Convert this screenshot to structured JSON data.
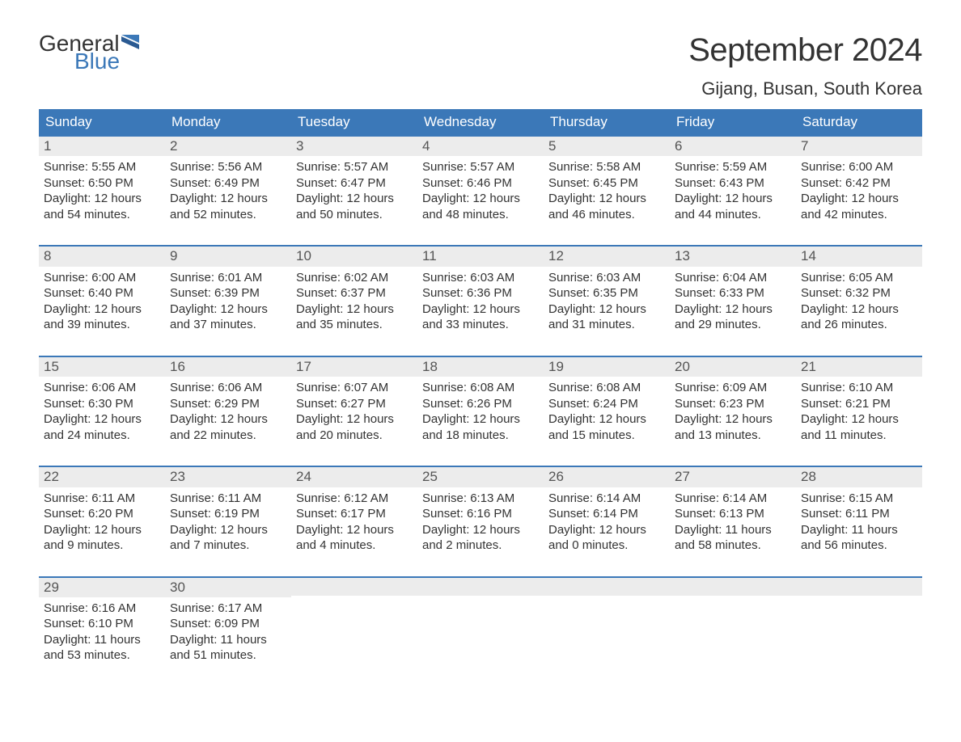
{
  "brand": {
    "general": "General",
    "blue": "Blue"
  },
  "title": "September 2024",
  "location": "Gijang, Busan, South Korea",
  "colors": {
    "header_bg": "#3b78b8",
    "header_text": "#ffffff",
    "daynum_bg": "#ececec",
    "daynum_text": "#555555",
    "body_text": "#333333",
    "logo_blue": "#3b78b8",
    "page_bg": "#ffffff"
  },
  "typography": {
    "title_fontsize": 40,
    "location_fontsize": 22,
    "header_fontsize": 17,
    "daynum_fontsize": 17,
    "body_fontsize": 15
  },
  "dow": [
    "Sunday",
    "Monday",
    "Tuesday",
    "Wednesday",
    "Thursday",
    "Friday",
    "Saturday"
  ],
  "labels": {
    "sunrise": "Sunrise: ",
    "sunset": "Sunset: ",
    "daylight_prefix": "Daylight: ",
    "and": " and ",
    "hours": " hours",
    "minutes": " minutes."
  },
  "days": [
    {
      "n": 1,
      "sunrise": "5:55 AM",
      "sunset": "6:50 PM",
      "dh": 12,
      "dm": 54
    },
    {
      "n": 2,
      "sunrise": "5:56 AM",
      "sunset": "6:49 PM",
      "dh": 12,
      "dm": 52
    },
    {
      "n": 3,
      "sunrise": "5:57 AM",
      "sunset": "6:47 PM",
      "dh": 12,
      "dm": 50
    },
    {
      "n": 4,
      "sunrise": "5:57 AM",
      "sunset": "6:46 PM",
      "dh": 12,
      "dm": 48
    },
    {
      "n": 5,
      "sunrise": "5:58 AM",
      "sunset": "6:45 PM",
      "dh": 12,
      "dm": 46
    },
    {
      "n": 6,
      "sunrise": "5:59 AM",
      "sunset": "6:43 PM",
      "dh": 12,
      "dm": 44
    },
    {
      "n": 7,
      "sunrise": "6:00 AM",
      "sunset": "6:42 PM",
      "dh": 12,
      "dm": 42
    },
    {
      "n": 8,
      "sunrise": "6:00 AM",
      "sunset": "6:40 PM",
      "dh": 12,
      "dm": 39
    },
    {
      "n": 9,
      "sunrise": "6:01 AM",
      "sunset": "6:39 PM",
      "dh": 12,
      "dm": 37
    },
    {
      "n": 10,
      "sunrise": "6:02 AM",
      "sunset": "6:37 PM",
      "dh": 12,
      "dm": 35
    },
    {
      "n": 11,
      "sunrise": "6:03 AM",
      "sunset": "6:36 PM",
      "dh": 12,
      "dm": 33
    },
    {
      "n": 12,
      "sunrise": "6:03 AM",
      "sunset": "6:35 PM",
      "dh": 12,
      "dm": 31
    },
    {
      "n": 13,
      "sunrise": "6:04 AM",
      "sunset": "6:33 PM",
      "dh": 12,
      "dm": 29
    },
    {
      "n": 14,
      "sunrise": "6:05 AM",
      "sunset": "6:32 PM",
      "dh": 12,
      "dm": 26
    },
    {
      "n": 15,
      "sunrise": "6:06 AM",
      "sunset": "6:30 PM",
      "dh": 12,
      "dm": 24
    },
    {
      "n": 16,
      "sunrise": "6:06 AM",
      "sunset": "6:29 PM",
      "dh": 12,
      "dm": 22
    },
    {
      "n": 17,
      "sunrise": "6:07 AM",
      "sunset": "6:27 PM",
      "dh": 12,
      "dm": 20
    },
    {
      "n": 18,
      "sunrise": "6:08 AM",
      "sunset": "6:26 PM",
      "dh": 12,
      "dm": 18
    },
    {
      "n": 19,
      "sunrise": "6:08 AM",
      "sunset": "6:24 PM",
      "dh": 12,
      "dm": 15
    },
    {
      "n": 20,
      "sunrise": "6:09 AM",
      "sunset": "6:23 PM",
      "dh": 12,
      "dm": 13
    },
    {
      "n": 21,
      "sunrise": "6:10 AM",
      "sunset": "6:21 PM",
      "dh": 12,
      "dm": 11
    },
    {
      "n": 22,
      "sunrise": "6:11 AM",
      "sunset": "6:20 PM",
      "dh": 12,
      "dm": 9
    },
    {
      "n": 23,
      "sunrise": "6:11 AM",
      "sunset": "6:19 PM",
      "dh": 12,
      "dm": 7
    },
    {
      "n": 24,
      "sunrise": "6:12 AM",
      "sunset": "6:17 PM",
      "dh": 12,
      "dm": 4
    },
    {
      "n": 25,
      "sunrise": "6:13 AM",
      "sunset": "6:16 PM",
      "dh": 12,
      "dm": 2
    },
    {
      "n": 26,
      "sunrise": "6:14 AM",
      "sunset": "6:14 PM",
      "dh": 12,
      "dm": 0
    },
    {
      "n": 27,
      "sunrise": "6:14 AM",
      "sunset": "6:13 PM",
      "dh": 11,
      "dm": 58
    },
    {
      "n": 28,
      "sunrise": "6:15 AM",
      "sunset": "6:11 PM",
      "dh": 11,
      "dm": 56
    },
    {
      "n": 29,
      "sunrise": "6:16 AM",
      "sunset": "6:10 PM",
      "dh": 11,
      "dm": 53
    },
    {
      "n": 30,
      "sunrise": "6:17 AM",
      "sunset": "6:09 PM",
      "dh": 11,
      "dm": 51
    }
  ],
  "layout": {
    "first_weekday_index": 0,
    "weeks": 5,
    "cols": 7
  }
}
